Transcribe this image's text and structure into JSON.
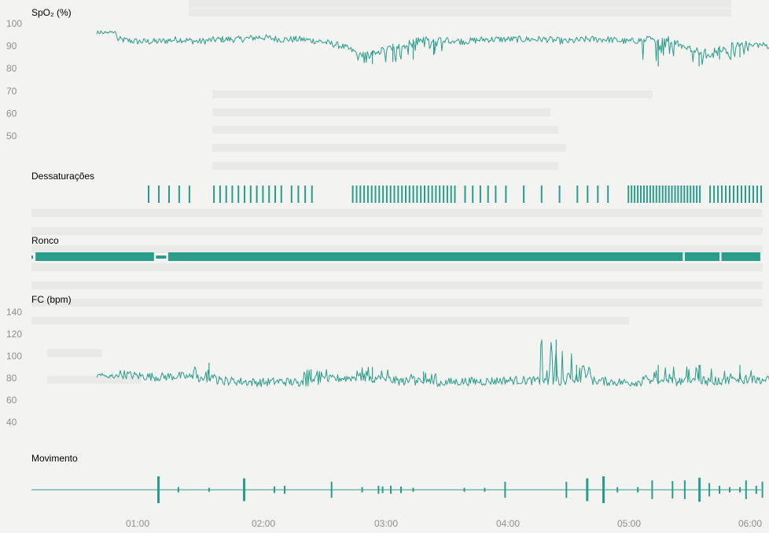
{
  "colors": {
    "trace": "#2a9d8a",
    "label": "#8f8f8f",
    "background": "#f3f3f1",
    "ghost_text": "#d8d8d6"
  },
  "chart_data": [
    {
      "type": "line",
      "id": "spo2",
      "title": "SpO₂ (%)",
      "yticks": [
        "100",
        "90",
        "80",
        "70",
        "60",
        "50"
      ],
      "ylim": [
        50,
        100
      ],
      "x_start": "00:40",
      "x_end": "06:05",
      "series": [
        {
          "start": "00:40",
          "step_minutes": 10,
          "values": [
            96,
            93,
            92,
            92,
            93,
            92,
            93,
            93,
            94,
            93,
            93,
            92,
            90,
            86,
            88,
            91,
            93,
            93,
            92,
            93,
            93,
            93,
            93,
            92,
            93,
            93,
            92,
            93,
            93,
            89,
            87,
            90,
            91,
            90,
            88
          ]
        }
      ],
      "desaturation_dips": [
        {
          "time": "02:55",
          "min": 82
        },
        {
          "time": "03:05",
          "min": 83
        },
        {
          "time": "03:15",
          "min": 84
        },
        {
          "time": "03:25",
          "min": 86
        },
        {
          "time": "05:15",
          "min": 81
        },
        {
          "time": "05:35",
          "min": 81
        },
        {
          "time": "05:45",
          "min": 84
        },
        {
          "time": "05:55",
          "min": 85
        }
      ]
    },
    {
      "type": "event_bars",
      "id": "desaturations",
      "title": "Dessaturações",
      "clusters": [
        {
          "start": "01:05",
          "end": "01:25",
          "events": 5
        },
        {
          "start": "01:37",
          "end": "02:10",
          "events": 12
        },
        {
          "start": "02:15",
          "end": "02:25",
          "events": 4
        },
        {
          "start": "02:45",
          "end": "03:35",
          "events": 28
        },
        {
          "start": "03:40",
          "end": "03:55",
          "events": 5
        },
        {
          "start": "04:00",
          "end": "04:35",
          "events": 5
        },
        {
          "start": "04:40",
          "end": "04:50",
          "events": 3
        },
        {
          "start": "05:00",
          "end": "05:35",
          "events": 24
        },
        {
          "start": "05:40",
          "end": "06:05",
          "events": 14
        }
      ]
    },
    {
      "type": "band",
      "id": "snoring",
      "title": "Ronco",
      "segments": [
        {
          "start": "00:00",
          "end": "00:08"
        },
        {
          "start": "00:10",
          "end": "01:08"
        },
        {
          "start": "01:09",
          "end": "01:14"
        },
        {
          "start": "01:15",
          "end": "05:27"
        },
        {
          "start": "05:28",
          "end": "05:45"
        },
        {
          "start": "05:46",
          "end": "06:05"
        }
      ]
    },
    {
      "type": "line",
      "id": "heart_rate",
      "title": "FC (bpm)",
      "yticks": [
        "140",
        "120",
        "100",
        "80",
        "60",
        "40"
      ],
      "ylim": [
        40,
        140
      ],
      "series": [
        {
          "start": "00:40",
          "step_minutes": 10,
          "values": [
            82,
            84,
            82,
            81,
            82,
            80,
            78,
            77,
            76,
            77,
            76,
            78,
            80,
            81,
            79,
            77,
            77,
            76,
            77,
            77,
            78,
            78,
            77,
            77,
            78,
            77,
            76,
            77,
            76,
            78,
            77,
            78,
            79,
            78,
            77
          ]
        }
      ],
      "spikes": [
        {
          "time": "01:35",
          "value": 94
        },
        {
          "time": "02:25",
          "value": 88
        },
        {
          "time": "02:55",
          "value": 90
        },
        {
          "time": "03:20",
          "value": 86
        },
        {
          "time": "04:25",
          "value": 115
        },
        {
          "time": "04:35",
          "value": 92
        },
        {
          "time": "05:15",
          "value": 92
        },
        {
          "time": "05:35",
          "value": 92
        },
        {
          "time": "05:55",
          "value": 92
        }
      ]
    },
    {
      "type": "event_bars",
      "id": "movement",
      "title": "Movimento",
      "events": [
        {
          "time": "01:10",
          "magnitude": 1.0
        },
        {
          "time": "01:20",
          "magnitude": 0.2
        },
        {
          "time": "01:35",
          "magnitude": 0.15
        },
        {
          "time": "01:52",
          "magnitude": 0.85
        },
        {
          "time": "02:07",
          "magnitude": 0.25
        },
        {
          "time": "02:12",
          "magnitude": 0.3
        },
        {
          "time": "02:35",
          "magnitude": 0.6
        },
        {
          "time": "02:50",
          "magnitude": 0.2
        },
        {
          "time": "02:58",
          "magnitude": 0.3
        },
        {
          "time": "03:00",
          "magnitude": 0.25
        },
        {
          "time": "03:04",
          "magnitude": 0.3
        },
        {
          "time": "03:09",
          "magnitude": 0.25
        },
        {
          "time": "03:15",
          "magnitude": 0.15
        },
        {
          "time": "03:40",
          "magnitude": 0.15
        },
        {
          "time": "03:50",
          "magnitude": 0.15
        },
        {
          "time": "04:00",
          "magnitude": 0.6
        },
        {
          "time": "04:30",
          "magnitude": 0.6
        },
        {
          "time": "04:40",
          "magnitude": 0.85
        },
        {
          "time": "04:48",
          "magnitude": 1.0
        },
        {
          "time": "04:55",
          "magnitude": 0.2
        },
        {
          "time": "05:05",
          "magnitude": 0.2
        },
        {
          "time": "05:12",
          "magnitude": 0.7
        },
        {
          "time": "05:22",
          "magnitude": 0.65
        },
        {
          "time": "05:28",
          "magnitude": 0.7
        },
        {
          "time": "05:35",
          "magnitude": 0.9
        },
        {
          "time": "05:40",
          "magnitude": 0.5
        },
        {
          "time": "05:45",
          "magnitude": 0.3
        },
        {
          "time": "05:50",
          "magnitude": 0.2
        },
        {
          "time": "05:55",
          "magnitude": 0.2
        },
        {
          "time": "05:58",
          "magnitude": 0.7
        },
        {
          "time": "06:03",
          "magnitude": 0.3
        },
        {
          "time": "06:06",
          "magnitude": 0.6
        }
      ]
    }
  ],
  "x_axis": {
    "ticks": [
      "01:00",
      "02:00",
      "03:00",
      "04:00",
      "05:00",
      "06:00"
    ]
  }
}
